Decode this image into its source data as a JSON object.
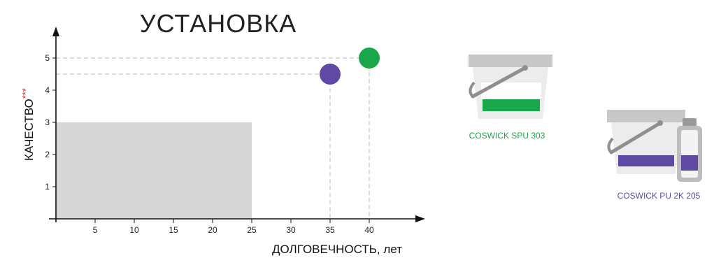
{
  "chart_data": {
    "type": "scatter",
    "title": "УСТАНОВКА",
    "xlabel": "ДОЛГОВЕЧНОСТЬ, лет",
    "ylabel": "КАЧЕСТВО",
    "ylabel_marker": "***",
    "x_ticks": [
      5,
      10,
      15,
      20,
      25,
      30,
      35,
      40
    ],
    "y_ticks": [
      1,
      2,
      3,
      4,
      5
    ],
    "xlim": [
      0,
      48
    ],
    "ylim": [
      0,
      6
    ],
    "region": {
      "x": [
        0,
        25
      ],
      "y": [
        0,
        3
      ],
      "color": "#d7d7d7"
    },
    "points": [
      {
        "name": "COSWICK SPU 303",
        "x": 40,
        "y": 5,
        "color": "#1aa64a"
      },
      {
        "name": "COSWICK PU 2K 205",
        "x": 35,
        "y": 4.5,
        "color": "#5e4aa5"
      }
    ]
  },
  "products": [
    {
      "label": "COSWICK SPU 303",
      "color": "#1aa64a",
      "icon": "bucket-icon"
    },
    {
      "label": "COSWICK PU 2K 205",
      "color": "#5e4aa5",
      "icon": "bucket-with-bottle-icon"
    }
  ],
  "colors": {
    "marker": "#e02020",
    "axis": "#111111",
    "guide": "#b8b8b8",
    "bucket_rim": "#c8c8c8",
    "bucket_body": "#ececec",
    "handle": "#8f8f8f"
  }
}
